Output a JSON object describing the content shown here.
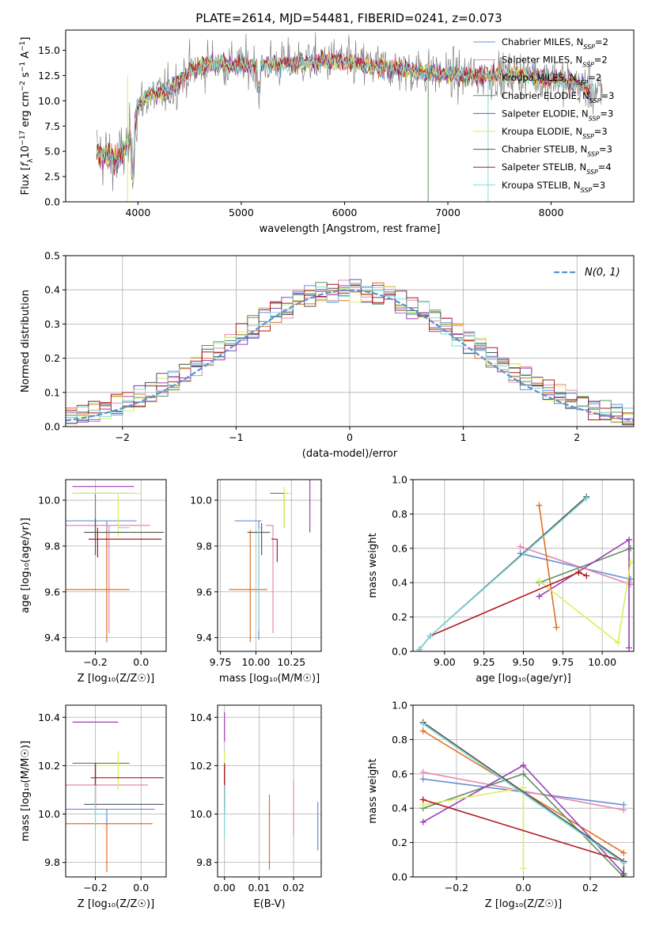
{
  "figure": {
    "title": "PLATE=2614, MJD=54481, FIBERID=0241, z=0.073"
  },
  "legend_labels": [
    "Chabrier MILES, N_SSP=2",
    "Salpeter MILES, N_SSP=2",
    "Kroupa MILES, N_SSP=2",
    "Chabrier ELODIE, N_SSP=3",
    "Salpeter ELODIE, N_SSP=3",
    "Kroupa ELODIE, N_SSP=3",
    "Chabrier STELIB, N_SSP=3",
    "Salpeter STELIB, N_SSP=4",
    "Kroupa STELIB, N_SSP=3"
  ],
  "series_colors": [
    "#6a8ed8",
    "#e487b2",
    "#e07020",
    "#5f8f5f",
    "#9a3fb5",
    "#d9ef5a",
    "#555555",
    "#b0181c",
    "#7fdadc"
  ],
  "chart_data": [
    {
      "id": "spectrum",
      "type": "line",
      "xlabel": "wavelength [Angstrom, rest frame]",
      "ylabel": "Flux [f_λ 10^-17 erg cm^-2 s^-1 A^-1]",
      "xlim": [
        3300,
        8800
      ],
      "ylim": [
        0,
        17
      ],
      "xticks": [
        4000,
        5000,
        6000,
        7000,
        8000
      ],
      "yticks": [
        0.0,
        2.5,
        5.0,
        7.5,
        10.0,
        12.5,
        15.0
      ],
      "grid": false,
      "legend_placement": "top-right",
      "data_profile": {
        "x": [
          3600,
          3800,
          3950,
          4000,
          4100,
          4300,
          4500,
          4700,
          5000,
          5300,
          5600,
          5900,
          6200,
          6500,
          6800,
          7100,
          7400,
          7700,
          8000,
          8300,
          8500
        ],
        "y": [
          5.0,
          4.0,
          6.5,
          9.5,
          10.5,
          11.0,
          13.0,
          13.8,
          13.5,
          13.6,
          13.8,
          14.0,
          13.5,
          13.2,
          12.8,
          12.5,
          12.5,
          12.6,
          12.3,
          11.5,
          10.5
        ]
      }
    },
    {
      "id": "residuals",
      "type": "step",
      "xlabel": "(data-model)/error",
      "ylabel": "Normed distribution",
      "xlim": [
        -2.5,
        2.5
      ],
      "ylim": [
        0,
        0.5
      ],
      "xticks": [
        -2,
        -1,
        0,
        1,
        2
      ],
      "yticks": [
        0.0,
        0.1,
        0.2,
        0.3,
        0.4,
        0.5
      ],
      "grid": true,
      "legend_placement": "top-right",
      "reference_curve": {
        "name": "N(0, 1)",
        "mean": 0,
        "sigma": 1,
        "color": "#5b8fd6"
      },
      "bin_edges_range": [
        -2.5,
        2.5
      ],
      "bin_width": 0.1
    },
    {
      "id": "age_vs_Z",
      "type": "errorbar",
      "xlabel": "Z [log10(Z/Z☉)]",
      "ylabel": "age  [log10(age/yr)]",
      "xlim": [
        -0.33,
        0.11
      ],
      "ylim": [
        9.34,
        10.09
      ],
      "xticks": [
        -0.2,
        0.0
      ],
      "yticks": [
        9.4,
        9.6,
        9.8,
        10.0
      ],
      "grid": true,
      "points": [
        {
          "series": 0,
          "x": -0.15,
          "y": 9.91,
          "xerr": [
            0.18,
            0.13
          ],
          "yerr": [
            0.12,
            0.0
          ]
        },
        {
          "series": 1,
          "x": -0.14,
          "y": 9.89,
          "xerr": [
            0.19,
            0.18
          ],
          "yerr": [
            0.47,
            0.0
          ]
        },
        {
          "series": 2,
          "x": -0.15,
          "y": 9.61,
          "xerr": [
            0.18,
            0.1
          ],
          "yerr": [
            0.23,
            0.26
          ]
        },
        {
          "series": 3,
          "x": -0.2,
          "y": 10.03,
          "xerr": [
            0.1,
            0.17
          ],
          "yerr": [
            0.2,
            0.0
          ]
        },
        {
          "series": 4,
          "x": -0.2,
          "y": 10.06,
          "xerr": [
            0.1,
            0.17
          ],
          "yerr": [
            0.0,
            0.0
          ]
        },
        {
          "series": 5,
          "x": -0.1,
          "y": 10.03,
          "xerr": [
            0.2,
            0.1
          ],
          "yerr": [
            0.19,
            0.0
          ]
        },
        {
          "series": 6,
          "x": -0.2,
          "y": 9.86,
          "xerr": [
            0.05,
            0.3
          ],
          "yerr": [
            0.1,
            0.06
          ]
        },
        {
          "series": 7,
          "x": -0.19,
          "y": 9.83,
          "xerr": [
            0.04,
            0.28
          ],
          "yerr": [
            0.08,
            0.05
          ]
        },
        {
          "series": 8,
          "x": -0.1,
          "y": 9.88,
          "xerr": [
            0.0,
            0.05
          ],
          "yerr": [
            0.0,
            0.0
          ]
        }
      ]
    },
    {
      "id": "age_vs_mass",
      "type": "errorbar",
      "xlabel": "mass [log10(M/M☉)]",
      "ylabel": "",
      "xlim": [
        9.73,
        10.46
      ],
      "ylim": [
        9.34,
        10.09
      ],
      "xticks": [
        9.75,
        10.0,
        10.25
      ],
      "yticks": [
        9.4,
        9.6,
        9.8,
        10.0
      ],
      "grid": true,
      "points": [
        {
          "series": 0,
          "x": 10.02,
          "y": 9.91,
          "xerr": [
            0.17,
            0.02
          ],
          "yerr": [
            0.52,
            0.0
          ]
        },
        {
          "series": 1,
          "x": 10.12,
          "y": 9.89,
          "xerr": [
            0.05,
            0.0
          ],
          "yerr": [
            0.47,
            0.0
          ]
        },
        {
          "series": 2,
          "x": 9.96,
          "y": 9.61,
          "xerr": [
            0.15,
            0.12
          ],
          "yerr": [
            0.23,
            0.26
          ]
        },
        {
          "series": 3,
          "x": 10.2,
          "y": 10.03,
          "xerr": [
            0.1,
            0.02
          ],
          "yerr": [
            0.15,
            0.0
          ]
        },
        {
          "series": 4,
          "x": 10.38,
          "y": 10.06,
          "xerr": [
            0.0,
            0.0
          ],
          "yerr": [
            0.2,
            0.05
          ]
        },
        {
          "series": 5,
          "x": 10.2,
          "y": 10.03,
          "xerr": [
            0.0,
            0.05
          ],
          "yerr": [
            0.15,
            0.03
          ]
        },
        {
          "series": 6,
          "x": 10.04,
          "y": 9.86,
          "xerr": [
            0.1,
            0.06
          ],
          "yerr": [
            0.1,
            0.04
          ]
        },
        {
          "series": 7,
          "x": 10.15,
          "y": 9.83,
          "xerr": [
            0.04,
            0.0
          ],
          "yerr": [
            0.1,
            0.0
          ]
        },
        {
          "series": 8,
          "x": 10.02,
          "y": 9.88,
          "xerr": [
            0.0,
            0.03
          ],
          "yerr": [
            0.45,
            0.0
          ]
        }
      ]
    },
    {
      "id": "mass_weight_vs_age",
      "type": "line",
      "xlabel": "age  [log10(age/yr)]",
      "ylabel": "mass weight",
      "xlim": [
        8.8,
        10.2
      ],
      "ylim": [
        0.0,
        1.0
      ],
      "xticks": [
        9.0,
        9.25,
        9.5,
        9.75,
        10.0
      ],
      "yticks": [
        0.0,
        0.2,
        0.4,
        0.6,
        0.8,
        1.0
      ],
      "grid": true,
      "series": [
        {
          "series": 0,
          "x": [
            9.48,
            10.18
          ],
          "y": [
            0.57,
            0.42
          ]
        },
        {
          "series": 1,
          "x": [
            9.48,
            10.18
          ],
          "y": [
            0.61,
            0.39
          ]
        },
        {
          "series": 2,
          "x": [
            9.6,
            9.71
          ],
          "y": [
            0.85,
            0.14
          ]
        },
        {
          "series": 3,
          "x": [
            9.6,
            10.18
          ],
          "y": [
            0.4,
            0.6
          ]
        },
        {
          "series": 4,
          "x": [
            9.6,
            10.17,
            10.17
          ],
          "y": [
            0.32,
            0.65,
            0.02
          ]
        },
        {
          "series": 5,
          "x": [
            9.6,
            10.1,
            10.18
          ],
          "y": [
            0.41,
            0.05,
            0.52
          ]
        },
        {
          "series": 6,
          "x": [
            8.84,
            8.91,
            9.9
          ],
          "y": [
            0.01,
            0.09,
            0.9
          ]
        },
        {
          "series": 7,
          "x": [
            8.84,
            8.91,
            9.85,
            9.9
          ],
          "y": [
            0.01,
            0.09,
            0.46,
            0.44
          ]
        },
        {
          "series": 8,
          "x": [
            8.84,
            8.91,
            9.9
          ],
          "y": [
            0.01,
            0.09,
            0.89
          ]
        }
      ]
    },
    {
      "id": "mass_vs_Z",
      "type": "errorbar",
      "xlabel": "Z [log10(Z/Z☉)]",
      "ylabel": "mass [log10(M/M☉)]",
      "xlim": [
        -0.33,
        0.11
      ],
      "ylim": [
        9.74,
        10.45
      ],
      "xticks": [
        -0.2,
        0.0
      ],
      "yticks": [
        9.8,
        10.0,
        10.2,
        10.4
      ],
      "grid": true,
      "points": [
        {
          "series": 0,
          "x": -0.15,
          "y": 10.02,
          "xerr": [
            0.18,
            0.21
          ],
          "yerr": [
            0.07,
            0.0
          ]
        },
        {
          "series": 1,
          "x": -0.14,
          "y": 10.12,
          "xerr": [
            0.19,
            0.17
          ],
          "yerr": [
            0.0,
            0.0
          ]
        },
        {
          "series": 2,
          "x": -0.15,
          "y": 9.96,
          "xerr": [
            0.18,
            0.2
          ],
          "yerr": [
            0.2,
            0.0
          ]
        },
        {
          "series": 3,
          "x": -0.2,
          "y": 10.21,
          "xerr": [
            0.1,
            0.15
          ],
          "yerr": [
            0.09,
            0.0
          ]
        },
        {
          "series": 4,
          "x": -0.1,
          "y": 10.38,
          "xerr": [
            0.2,
            0.0
          ],
          "yerr": [
            0.0,
            0.0
          ]
        },
        {
          "series": 5,
          "x": -0.1,
          "y": 10.2,
          "xerr": [
            0.1,
            0.05
          ],
          "yerr": [
            0.1,
            0.06
          ]
        },
        {
          "series": 6,
          "x": -0.2,
          "y": 10.04,
          "xerr": [
            0.05,
            0.3
          ],
          "yerr": [
            0.04,
            0.16
          ]
        },
        {
          "series": 7,
          "x": -0.2,
          "y": 10.15,
          "xerr": [
            0.02,
            0.3
          ],
          "yerr": [
            0.12,
            0.06
          ]
        },
        {
          "series": 8,
          "x": -0.2,
          "y": 10.0,
          "xerr": [
            0.0,
            0.05
          ],
          "yerr": [
            0.07,
            0.12
          ]
        }
      ]
    },
    {
      "id": "mass_vs_ebv",
      "type": "errorbar",
      "xlabel": "E(B-V)",
      "ylabel": "",
      "xlim": [
        -0.002,
        0.028
      ],
      "ylim": [
        9.74,
        10.45
      ],
      "xticks": [
        0.0,
        0.01,
        0.02
      ],
      "yticks": [
        9.8,
        10.0,
        10.2,
        10.4
      ],
      "grid": true,
      "points": [
        {
          "series": 0,
          "x": 0.027,
          "y": 9.95,
          "yerr": [
            0.1,
            0.1
          ]
        },
        {
          "series": 1,
          "x": 0.02,
          "y": 10.02,
          "yerr": [
            0.11,
            0.12
          ]
        },
        {
          "series": 2,
          "x": 0.013,
          "y": 9.93,
          "yerr": [
            0.16,
            0.15
          ]
        },
        {
          "series": 3,
          "x": 0.0,
          "y": 10.21,
          "yerr": [
            0.1,
            0.0
          ]
        },
        {
          "series": 4,
          "x": 0.0,
          "y": 10.38,
          "yerr": [
            0.08,
            0.04
          ]
        },
        {
          "series": 5,
          "x": 0.0,
          "y": 10.2,
          "yerr": [
            0.1,
            0.06
          ]
        },
        {
          "series": 6,
          "x": 0.0,
          "y": 10.04,
          "yerr": [
            0.04,
            0.16
          ]
        },
        {
          "series": 7,
          "x": 0.0,
          "y": 10.15,
          "yerr": [
            0.12,
            0.06
          ]
        },
        {
          "series": 8,
          "x": 0.0,
          "y": 10.0,
          "yerr": [
            0.1,
            0.12
          ]
        }
      ]
    },
    {
      "id": "mass_weight_vs_Z",
      "type": "line",
      "xlabel": "Z [log10(Z/Z☉)]",
      "ylabel": "mass weight",
      "xlim": [
        -0.33,
        0.33
      ],
      "ylim": [
        0.0,
        1.0
      ],
      "xticks": [
        -0.2,
        0.0,
        0.2
      ],
      "yticks": [
        0.0,
        0.2,
        0.4,
        0.6,
        0.8,
        1.0
      ],
      "grid": true,
      "series": [
        {
          "series": 0,
          "x": [
            -0.3,
            0.3
          ],
          "y": [
            0.57,
            0.42
          ]
        },
        {
          "series": 1,
          "x": [
            -0.3,
            0.3
          ],
          "y": [
            0.61,
            0.39
          ]
        },
        {
          "series": 2,
          "x": [
            -0.3,
            0.3
          ],
          "y": [
            0.85,
            0.14
          ]
        },
        {
          "series": 3,
          "x": [
            -0.3,
            0.0,
            0.3
          ],
          "y": [
            0.4,
            0.6,
            0.0
          ]
        },
        {
          "series": 4,
          "x": [
            -0.3,
            0.0,
            0.3
          ],
          "y": [
            0.32,
            0.65,
            0.02
          ]
        },
        {
          "series": 5,
          "x": [
            -0.3,
            0.0,
            0.0
          ],
          "y": [
            0.42,
            0.52,
            0.05
          ]
        },
        {
          "series": 6,
          "x": [
            -0.3,
            0.3,
            0.3
          ],
          "y": [
            0.9,
            0.09,
            0.01
          ]
        },
        {
          "series": 7,
          "x": [
            -0.3,
            0.3
          ],
          "y": [
            0.45,
            0.09
          ]
        },
        {
          "series": 8,
          "x": [
            -0.3,
            0.3
          ],
          "y": [
            0.89,
            0.08
          ]
        }
      ]
    }
  ]
}
